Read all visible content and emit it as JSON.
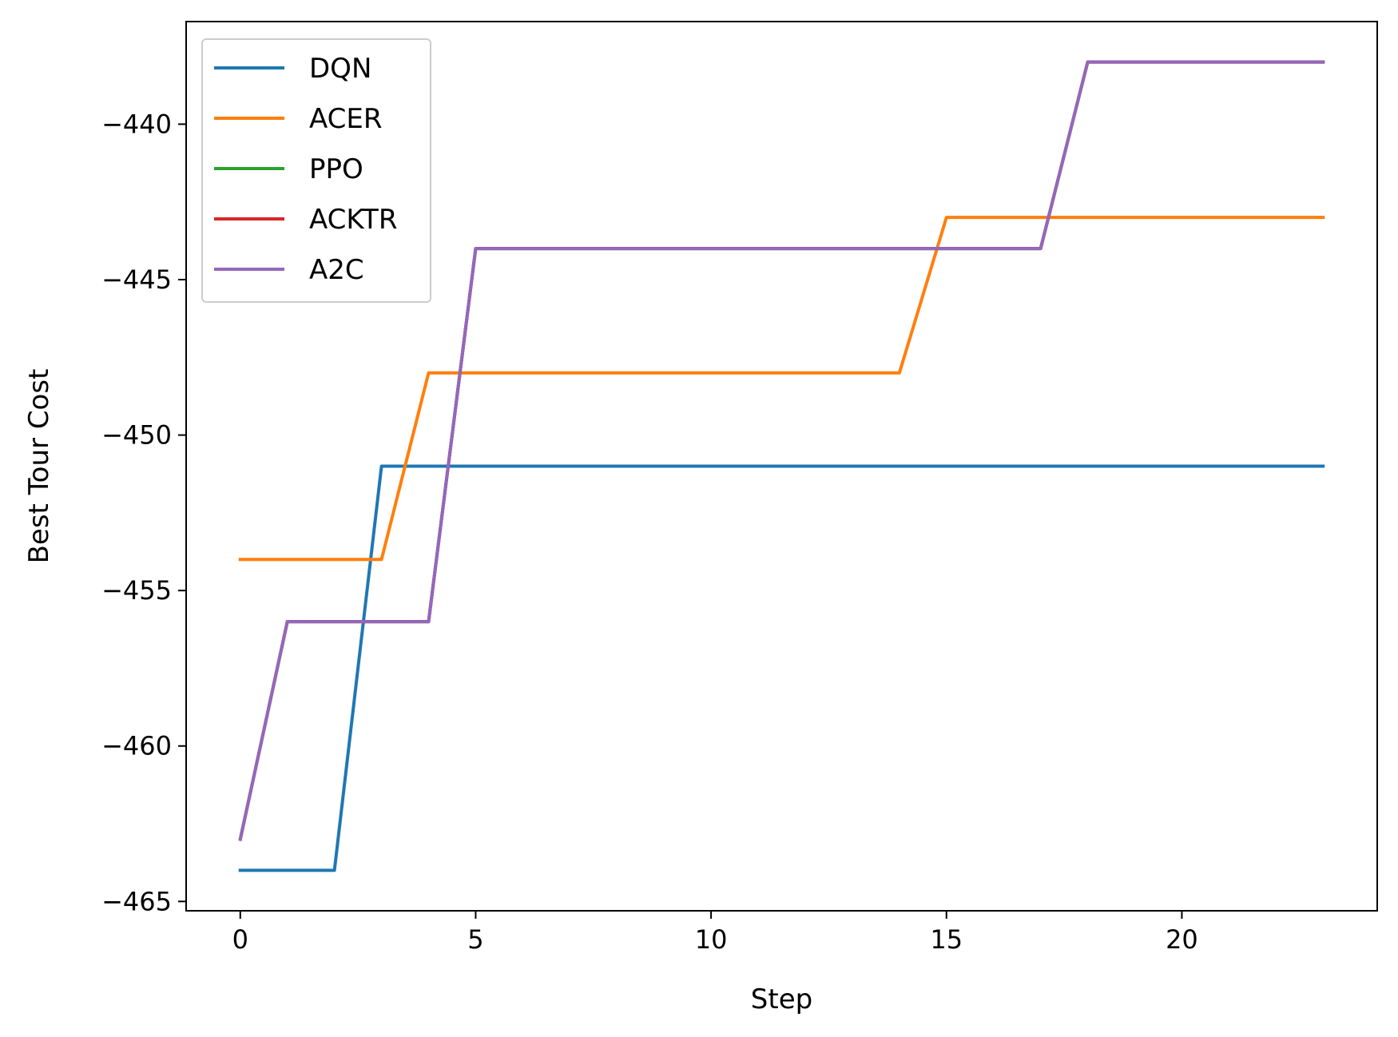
{
  "chart_data": {
    "type": "line",
    "title": "",
    "xlabel": "Step",
    "ylabel": "Best Tour Cost",
    "xlim": [
      -1.15,
      24.15
    ],
    "ylim": [
      -465.3,
      -436.7
    ],
    "xticks": [
      0,
      5,
      10,
      15,
      20
    ],
    "yticks": [
      -465,
      -460,
      -455,
      -450,
      -445,
      -440
    ],
    "ytick_labels": [
      "−465",
      "−460",
      "−455",
      "−450",
      "−445",
      "−440"
    ],
    "grid": false,
    "legend_position": "top-left",
    "x": [
      0,
      1,
      2,
      3,
      4,
      5,
      6,
      7,
      8,
      9,
      10,
      11,
      12,
      13,
      14,
      15,
      16,
      17,
      18,
      19,
      20,
      21,
      22,
      23
    ],
    "series": [
      {
        "name": "DQN",
        "color": "#1f77b4",
        "values": [
          -464,
          -464,
          -464,
          -451,
          -451,
          -451,
          -451,
          -451,
          -451,
          -451,
          -451,
          -451,
          -451,
          -451,
          -451,
          -451,
          -451,
          -451,
          -451,
          -451,
          -451,
          -451,
          -451,
          -451
        ]
      },
      {
        "name": "ACER",
        "color": "#ff7f0e",
        "values": [
          -454,
          -454,
          -454,
          -454,
          -448,
          -448,
          -448,
          -448,
          -448,
          -448,
          -448,
          -448,
          -448,
          -448,
          -448,
          -443,
          -443,
          -443,
          -443,
          -443,
          -443,
          -443,
          -443,
          -443
        ]
      },
      {
        "name": "PPO",
        "color": "#2ca02c",
        "values": [
          -463,
          -456,
          -456,
          -456,
          -456,
          -444,
          -444,
          -444,
          -444,
          -444,
          -444,
          -444,
          -444,
          -444,
          -444,
          -444,
          -444,
          -444,
          -438,
          -438,
          -438,
          -438,
          -438,
          -438
        ]
      },
      {
        "name": "ACKTR",
        "color": "#d62728",
        "values": [
          -463,
          -456,
          -456,
          -456,
          -456,
          -444,
          -444,
          -444,
          -444,
          -444,
          -444,
          -444,
          -444,
          -444,
          -444,
          -444,
          -444,
          -444,
          -438,
          -438,
          -438,
          -438,
          -438,
          -438
        ]
      },
      {
        "name": "A2C",
        "color": "#9467bd",
        "values": [
          -463,
          -456,
          -456,
          -456,
          -456,
          -444,
          -444,
          -444,
          -444,
          -444,
          -444,
          -444,
          -444,
          -444,
          -444,
          -444,
          -444,
          -444,
          -438,
          -438,
          -438,
          -438,
          -438,
          -438
        ]
      }
    ]
  }
}
